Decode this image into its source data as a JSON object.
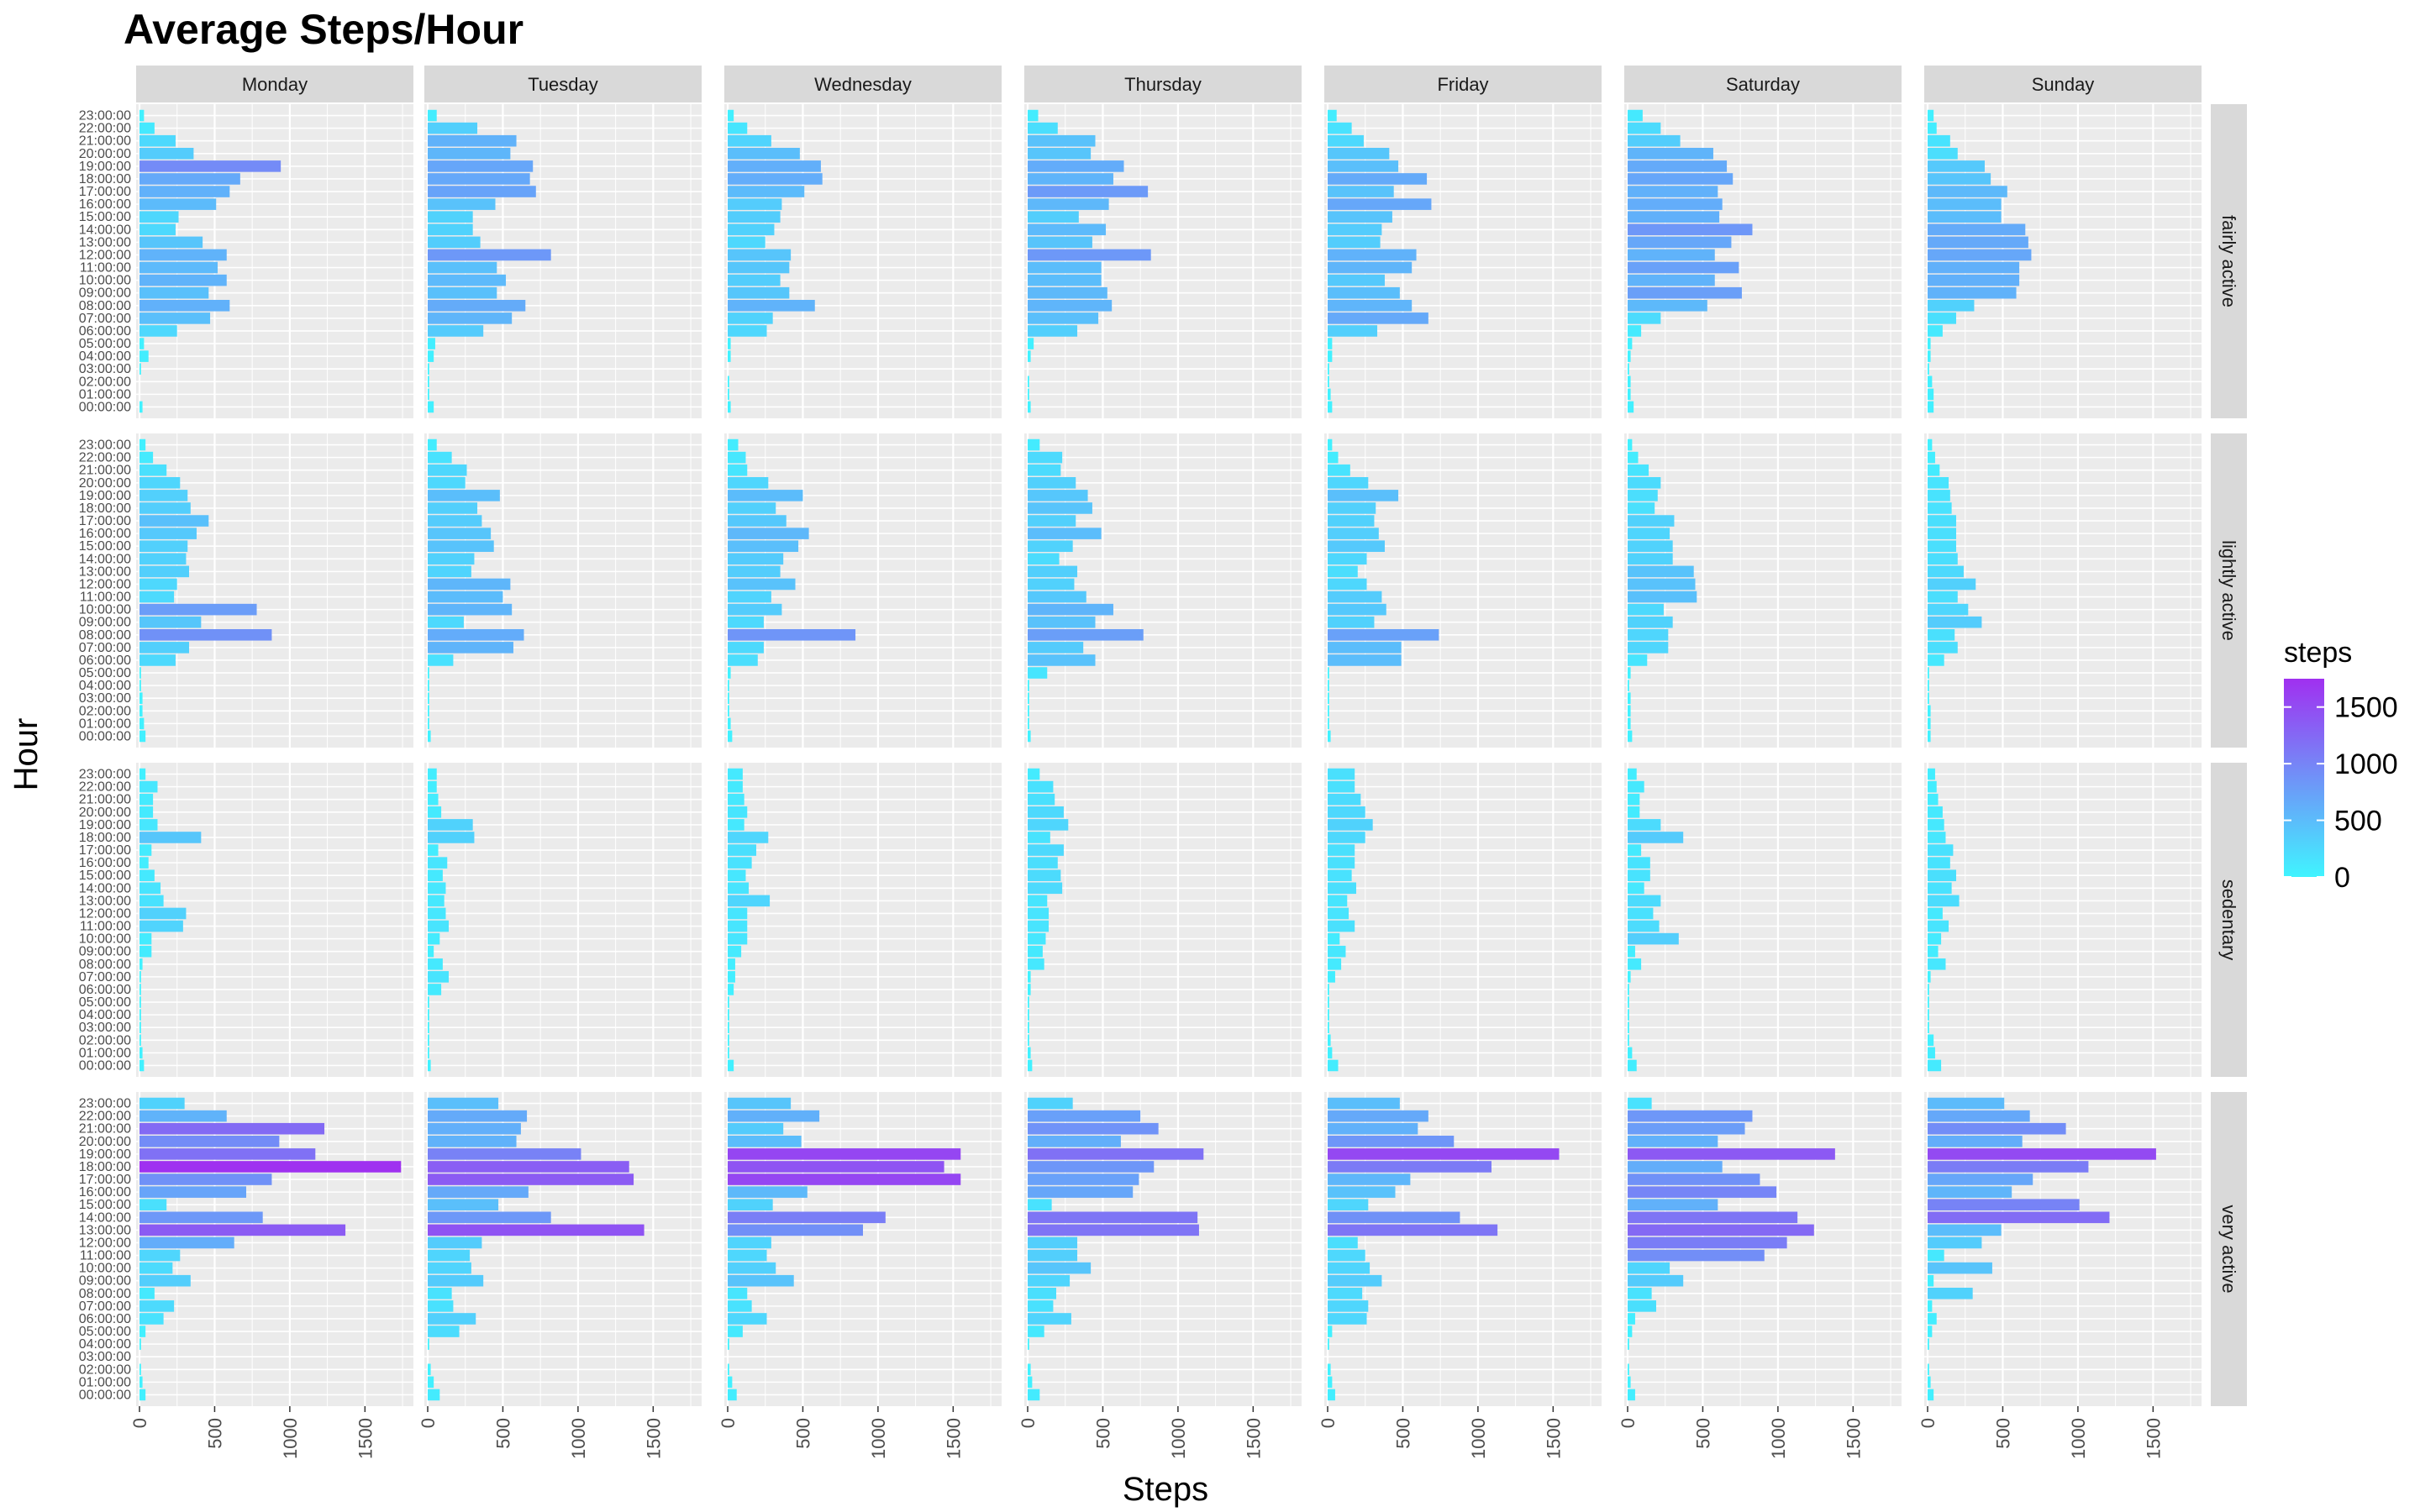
{
  "chart_data": {
    "type": "bar",
    "orientation": "horizontal",
    "title": "Average Steps/Hour",
    "xlabel": "Steps",
    "ylabel": "Hour",
    "xlim": [
      0,
      1800
    ],
    "xticks": [
      0,
      500,
      1000,
      1500
    ],
    "grid": true,
    "facet_columns": [
      "Monday",
      "Tuesday",
      "Wednesday",
      "Thursday",
      "Friday",
      "Saturday",
      "Sunday"
    ],
    "facet_rows": [
      "fairly active",
      "lightly active",
      "sedentary",
      "very active"
    ],
    "hours": [
      "00:00:00",
      "01:00:00",
      "02:00:00",
      "03:00:00",
      "04:00:00",
      "05:00:00",
      "06:00:00",
      "07:00:00",
      "08:00:00",
      "09:00:00",
      "10:00:00",
      "11:00:00",
      "12:00:00",
      "13:00:00",
      "14:00:00",
      "15:00:00",
      "16:00:00",
      "17:00:00",
      "18:00:00",
      "19:00:00",
      "20:00:00",
      "21:00:00",
      "22:00:00",
      "23:00:00"
    ],
    "legend": {
      "title": "steps",
      "placement": "right",
      "ticks": [
        0,
        500,
        1000,
        1500
      ],
      "range": [
        0,
        1750
      ],
      "colors": [
        "#40f4ff",
        "#a030f0"
      ]
    },
    "values": {
      "fairly active": {
        "Monday": [
          20,
          0,
          0,
          10,
          60,
          30,
          250,
          470,
          600,
          460,
          580,
          520,
          580,
          420,
          240,
          260,
          510,
          600,
          670,
          940,
          360,
          240,
          100,
          30
        ],
        "Tuesday": [
          40,
          10,
          10,
          10,
          40,
          50,
          370,
          560,
          650,
          460,
          520,
          460,
          820,
          350,
          300,
          300,
          450,
          720,
          680,
          700,
          550,
          590,
          330,
          60
        ],
        "Wednesday": [
          20,
          10,
          10,
          0,
          20,
          20,
          260,
          300,
          580,
          410,
          350,
          410,
          420,
          250,
          310,
          350,
          360,
          510,
          630,
          620,
          480,
          290,
          130,
          40
        ],
        "Thursday": [
          20,
          10,
          10,
          0,
          20,
          40,
          330,
          470,
          560,
          530,
          490,
          490,
          820,
          430,
          520,
          340,
          540,
          800,
          570,
          640,
          420,
          450,
          200,
          70
        ],
        "Friday": [
          30,
          20,
          10,
          10,
          30,
          30,
          330,
          670,
          560,
          480,
          380,
          560,
          590,
          350,
          360,
          430,
          690,
          440,
          660,
          470,
          410,
          240,
          160,
          60
        ],
        "Saturday": [
          40,
          20,
          20,
          10,
          20,
          30,
          90,
          220,
          530,
          760,
          580,
          740,
          580,
          690,
          830,
          610,
          630,
          600,
          700,
          660,
          570,
          350,
          220,
          100
        ],
        "Sunday": [
          40,
          40,
          30,
          10,
          20,
          20,
          100,
          190,
          310,
          590,
          610,
          610,
          690,
          670,
          650,
          490,
          490,
          530,
          420,
          380,
          200,
          150,
          60,
          40
        ]
      },
      "lightly active": {
        "Monday": [
          40,
          30,
          20,
          20,
          10,
          10,
          240,
          330,
          880,
          410,
          780,
          230,
          250,
          330,
          310,
          320,
          380,
          460,
          340,
          320,
          270,
          180,
          90,
          40
        ],
        "Tuesday": [
          20,
          10,
          10,
          10,
          10,
          10,
          170,
          570,
          640,
          240,
          560,
          500,
          550,
          290,
          310,
          440,
          420,
          360,
          330,
          480,
          250,
          260,
          160,
          60
        ],
        "Wednesday": [
          30,
          20,
          10,
          10,
          10,
          20,
          200,
          240,
          850,
          240,
          360,
          290,
          450,
          350,
          370,
          470,
          540,
          390,
          320,
          500,
          270,
          130,
          120,
          70
        ],
        "Thursday": [
          20,
          10,
          10,
          10,
          10,
          130,
          450,
          370,
          770,
          450,
          570,
          390,
          310,
          330,
          210,
          300,
          490,
          320,
          430,
          400,
          320,
          220,
          230,
          80
        ],
        "Friday": [
          20,
          10,
          10,
          10,
          10,
          10,
          490,
          490,
          740,
          310,
          390,
          360,
          260,
          200,
          260,
          380,
          340,
          310,
          320,
          470,
          270,
          150,
          70,
          30
        ],
        "Saturday": [
          30,
          20,
          20,
          20,
          10,
          20,
          130,
          270,
          270,
          300,
          240,
          460,
          450,
          440,
          300,
          300,
          280,
          310,
          180,
          200,
          220,
          140,
          70,
          30
        ],
        "Sunday": [
          20,
          20,
          20,
          10,
          10,
          10,
          110,
          200,
          180,
          360,
          270,
          200,
          320,
          240,
          200,
          190,
          190,
          190,
          160,
          150,
          140,
          80,
          50,
          30
        ]
      },
      "sedentary": {
        "Monday": [
          30,
          20,
          10,
          10,
          10,
          10,
          10,
          10,
          20,
          80,
          80,
          290,
          310,
          160,
          140,
          100,
          60,
          80,
          410,
          120,
          90,
          90,
          120,
          40
        ],
        "Tuesday": [
          20,
          10,
          10,
          10,
          10,
          10,
          90,
          140,
          100,
          40,
          80,
          140,
          120,
          110,
          120,
          100,
          130,
          70,
          310,
          300,
          90,
          70,
          60,
          60
        ],
        "Wednesday": [
          40,
          10,
          10,
          10,
          10,
          10,
          40,
          50,
          50,
          90,
          130,
          130,
          130,
          280,
          140,
          120,
          160,
          190,
          270,
          110,
          130,
          110,
          100,
          100
        ],
        "Thursday": [
          30,
          20,
          10,
          10,
          10,
          10,
          20,
          20,
          110,
          100,
          120,
          140,
          140,
          130,
          230,
          220,
          200,
          240,
          150,
          270,
          240,
          180,
          170,
          80
        ],
        "Friday": [
          70,
          30,
          20,
          10,
          10,
          10,
          10,
          50,
          90,
          120,
          80,
          180,
          140,
          130,
          190,
          160,
          180,
          180,
          250,
          300,
          250,
          220,
          180,
          180
        ],
        "Saturday": [
          60,
          30,
          10,
          10,
          10,
          10,
          10,
          20,
          90,
          50,
          340,
          210,
          170,
          220,
          110,
          150,
          150,
          90,
          370,
          220,
          80,
          80,
          110,
          60
        ],
        "Sunday": [
          90,
          50,
          40,
          10,
          10,
          10,
          10,
          20,
          120,
          70,
          90,
          140,
          100,
          210,
          160,
          190,
          150,
          170,
          120,
          110,
          100,
          70,
          60,
          50
        ]
      },
      "very active": {
        "Monday": [
          40,
          20,
          10,
          0,
          10,
          40,
          160,
          230,
          100,
          340,
          220,
          270,
          630,
          1370,
          820,
          180,
          710,
          880,
          1740,
          1170,
          930,
          1230,
          580,
          300
        ],
        "Tuesday": [
          80,
          40,
          20,
          0,
          10,
          210,
          320,
          170,
          160,
          370,
          290,
          280,
          360,
          1440,
          820,
          470,
          670,
          1370,
          1340,
          1020,
          590,
          620,
          660,
          470
        ],
        "Wednesday": [
          60,
          30,
          10,
          0,
          10,
          100,
          260,
          160,
          130,
          440,
          320,
          260,
          290,
          900,
          1050,
          300,
          530,
          1550,
          1440,
          1550,
          490,
          370,
          610,
          420
        ],
        "Thursday": [
          80,
          30,
          20,
          0,
          10,
          110,
          290,
          170,
          190,
          280,
          420,
          330,
          330,
          1140,
          1130,
          160,
          700,
          740,
          840,
          1170,
          620,
          870,
          750,
          300
        ],
        "Friday": [
          50,
          30,
          20,
          0,
          10,
          30,
          260,
          270,
          230,
          360,
          280,
          250,
          200,
          1130,
          880,
          270,
          450,
          550,
          1090,
          1540,
          840,
          600,
          670,
          480
        ],
        "Saturday": [
          50,
          20,
          10,
          0,
          10,
          30,
          50,
          190,
          160,
          370,
          280,
          910,
          1060,
          1240,
          1130,
          600,
          990,
          880,
          630,
          1380,
          600,
          780,
          830,
          160
        ],
        "Sunday": [
          40,
          20,
          10,
          0,
          10,
          30,
          60,
          30,
          300,
          40,
          430,
          110,
          360,
          490,
          1210,
          1010,
          560,
          700,
          1070,
          1520,
          630,
          920,
          680,
          510
        ]
      }
    }
  }
}
